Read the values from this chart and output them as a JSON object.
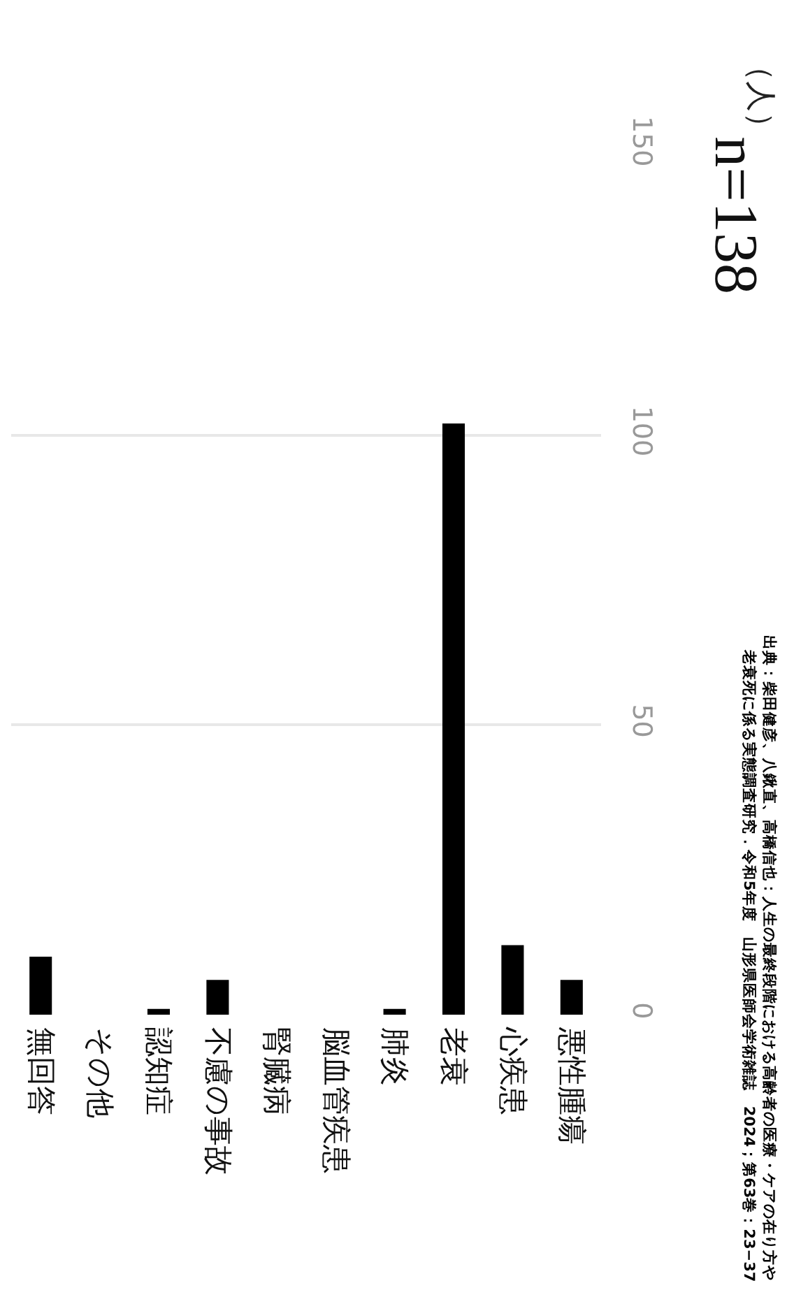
{
  "chart_data": {
    "type": "bar",
    "categories": [
      "無回答",
      "その他",
      "認知症",
      "不慮の事故",
      "腎臓病",
      "脳血管疾患",
      "肺炎",
      "老衰",
      "心疾患",
      "悪性腫瘍"
    ],
    "values": [
      10,
      0,
      1,
      6,
      0,
      0,
      1,
      102,
      12,
      6
    ],
    "color": "#000000",
    "ylabel": "（人）",
    "ylim": [
      0,
      150
    ],
    "yticks": [
      0,
      50,
      100,
      150
    ],
    "grid": "y",
    "annotations": [
      "n=138",
      "出典：柴田健彦、八鍬直、高橋信也：人生の最終段階における高齢者の医療・ケアの在り方や",
      "老衰死に係る実態調査研究．令和5年度　山形県医師会学術雑誌　2024；第63巻：23−37"
    ]
  }
}
